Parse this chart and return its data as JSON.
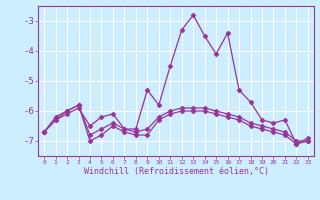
{
  "x": [
    0,
    1,
    2,
    3,
    4,
    5,
    6,
    7,
    8,
    9,
    10,
    11,
    12,
    13,
    14,
    15,
    16,
    17,
    18,
    19,
    20,
    21,
    22,
    23
  ],
  "line1": [
    -6.7,
    -6.3,
    -6.1,
    -5.9,
    -6.5,
    -6.2,
    -6.1,
    -6.6,
    -6.6,
    -5.3,
    -5.8,
    -4.5,
    -3.3,
    -2.8,
    -3.5,
    -4.1,
    -3.4,
    -5.3,
    -5.7,
    -6.3,
    -6.4,
    -6.3,
    -7.1,
    -6.9
  ],
  "line2": [
    -6.7,
    -6.2,
    -6.0,
    -5.8,
    -7.0,
    -6.8,
    -6.5,
    -6.7,
    -6.8,
    -6.8,
    -6.3,
    -6.1,
    -6.0,
    -6.0,
    -6.0,
    -6.1,
    -6.2,
    -6.3,
    -6.5,
    -6.6,
    -6.7,
    -6.8,
    -7.1,
    -7.0
  ],
  "line3": [
    -6.7,
    -6.3,
    -6.0,
    -5.8,
    -6.8,
    -6.6,
    -6.4,
    -6.6,
    -6.7,
    -6.6,
    -6.2,
    -6.0,
    -5.9,
    -5.9,
    -5.9,
    -6.0,
    -6.1,
    -6.2,
    -6.4,
    -6.5,
    -6.6,
    -6.7,
    -7.0,
    -7.0
  ],
  "bg_color": "#cceeff",
  "line_color": "#993399",
  "grid_color": "#ffffff",
  "xlabel": "Windchill (Refroidissement éolien,°C)",
  "ylim": [
    -7.5,
    -2.5
  ],
  "xlim": [
    -0.5,
    23.5
  ],
  "yticks": [
    -7,
    -6,
    -5,
    -4,
    -3
  ],
  "xtick_labels": [
    "0",
    "1",
    "2",
    "3",
    "4",
    "5",
    "6",
    "7",
    "8",
    "9",
    "10",
    "11",
    "12",
    "13",
    "14",
    "15",
    "16",
    "17",
    "18",
    "19",
    "20",
    "21",
    "22",
    "23"
  ]
}
